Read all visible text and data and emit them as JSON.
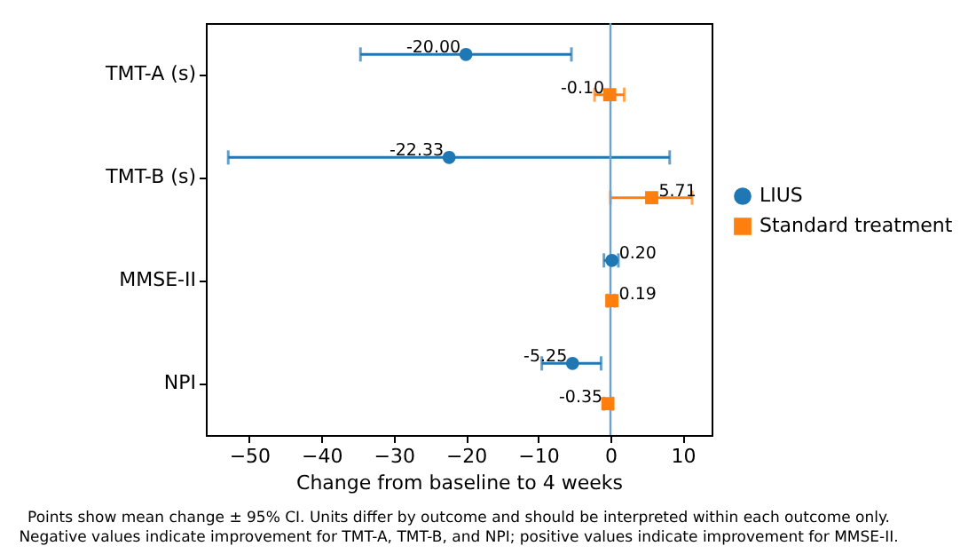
{
  "chart_data": {
    "type": "scatter",
    "orientation": "horizontal",
    "categories": [
      "TMT-A (s)",
      "TMT-B (s)",
      "MMSE-II",
      "NPI"
    ],
    "xlabel": "Change from baseline to 4 weeks",
    "xlim": [
      -56,
      14
    ],
    "xticks": [
      -50,
      -40,
      -30,
      -20,
      -10,
      0,
      10
    ],
    "grid": false,
    "legend": "right",
    "series": [
      {
        "name": "LIUS",
        "color": "#1f77b4",
        "marker": "circle",
        "values": [
          -20.0,
          -22.33,
          0.2,
          -5.25
        ],
        "errors": [
          [
            -34.6,
            -5.4
          ],
          [
            -52.9,
            8.2
          ],
          [
            -0.9,
            1.1
          ],
          [
            -9.5,
            -1.3
          ]
        ],
        "value_labels": [
          "-20.00",
          "-22.33",
          "0.20",
          "-5.25"
        ]
      },
      {
        "name": "Standard treatment",
        "color": "#ff7f0e",
        "marker": "square",
        "values": [
          -0.1,
          5.71,
          0.19,
          -0.35
        ],
        "errors": [
          [
            -2.2,
            1.9
          ],
          [
            0.0,
            11.3
          ],
          [
            -0.4,
            0.6
          ],
          [
            -0.9,
            0.3
          ]
        ],
        "value_labels": [
          "-0.10",
          "5.71",
          "0.19",
          "-0.35"
        ]
      }
    ],
    "ref_lines": [
      {
        "axis": "x",
        "value": 0,
        "color": "#6fa3cf"
      }
    ],
    "annotations": [
      "Points show mean change ± 95% CI. Units differ by outcome and should be interpreted within each outcome only.",
      "Negative values indicate improvement for TMT-A, TMT-B, and NPI; positive values indicate improvement for MMSE-II."
    ]
  }
}
